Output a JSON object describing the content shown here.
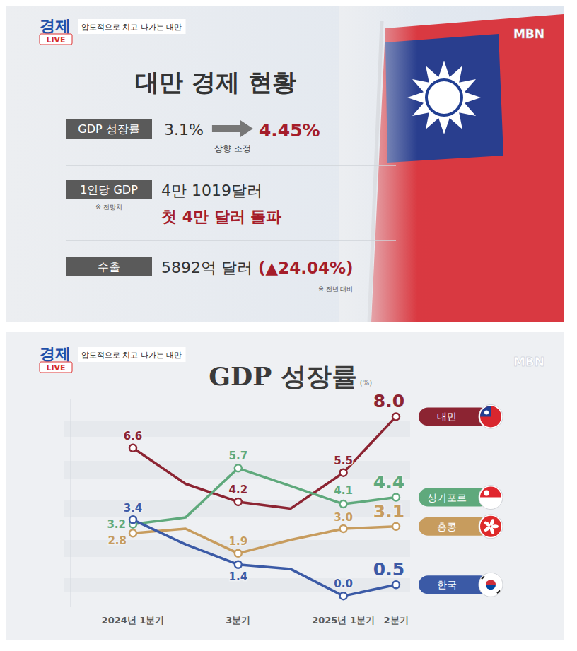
{
  "broadcast": {
    "badge_top": "경제",
    "badge_bottom": "LIVE",
    "tagline": "압도적으로 치고 나가는 대만",
    "brand": "MBN"
  },
  "info_card": {
    "title": "대만 경제 현황",
    "rows": [
      {
        "label": "GDP 성장률",
        "from": "3.1%",
        "to": "4.45%",
        "note": "상향 조정"
      },
      {
        "label": "1인당 GDP",
        "label_note": "※ 전망치",
        "value": "4만 1019달러",
        "highlight": "첫 4만 달러 돌파"
      },
      {
        "label": "수출",
        "value": "5892억 달러",
        "change": "(▲24.04%)",
        "note": "※ 전년 대비"
      }
    ]
  },
  "chart_data": {
    "type": "line",
    "title": "GDP 성장률",
    "ylabel": "(%)",
    "categories": [
      "2024년 1분기",
      null,
      "3분기",
      null,
      "2025년 1분기",
      "2분기"
    ],
    "ylim": [
      -0.5,
      8.8
    ],
    "tick_labels": "x",
    "grid": false,
    "legend": "right",
    "marker": "circle",
    "data_labels": true,
    "series": [
      {
        "name": "대만",
        "color": "#8c2432",
        "values": [
          6.6,
          5.0,
          4.2,
          3.9,
          5.5,
          8.0
        ],
        "value_labels": [
          "6.6",
          null,
          "4.2",
          null,
          "5.5",
          "8.0"
        ]
      },
      {
        "name": "싱가포르",
        "color": "#5fa97c",
        "values": [
          3.2,
          3.5,
          5.7,
          4.9,
          4.1,
          4.4
        ],
        "value_labels": [
          "3.2",
          null,
          "5.7",
          null,
          "4.1",
          "4.4"
        ]
      },
      {
        "name": "홍콩",
        "color": "#c79c5e",
        "values": [
          2.8,
          3.0,
          1.9,
          2.5,
          3.0,
          3.1
        ],
        "value_labels": [
          "2.8",
          null,
          "1.9",
          null,
          "3.0",
          "3.1"
        ]
      },
      {
        "name": "한국",
        "color": "#3b5aa6",
        "values": [
          3.4,
          2.3,
          1.4,
          1.2,
          0.0,
          0.5
        ],
        "value_labels": [
          "3.4",
          null,
          "1.4",
          null,
          "0.0",
          "0.5"
        ]
      }
    ]
  }
}
